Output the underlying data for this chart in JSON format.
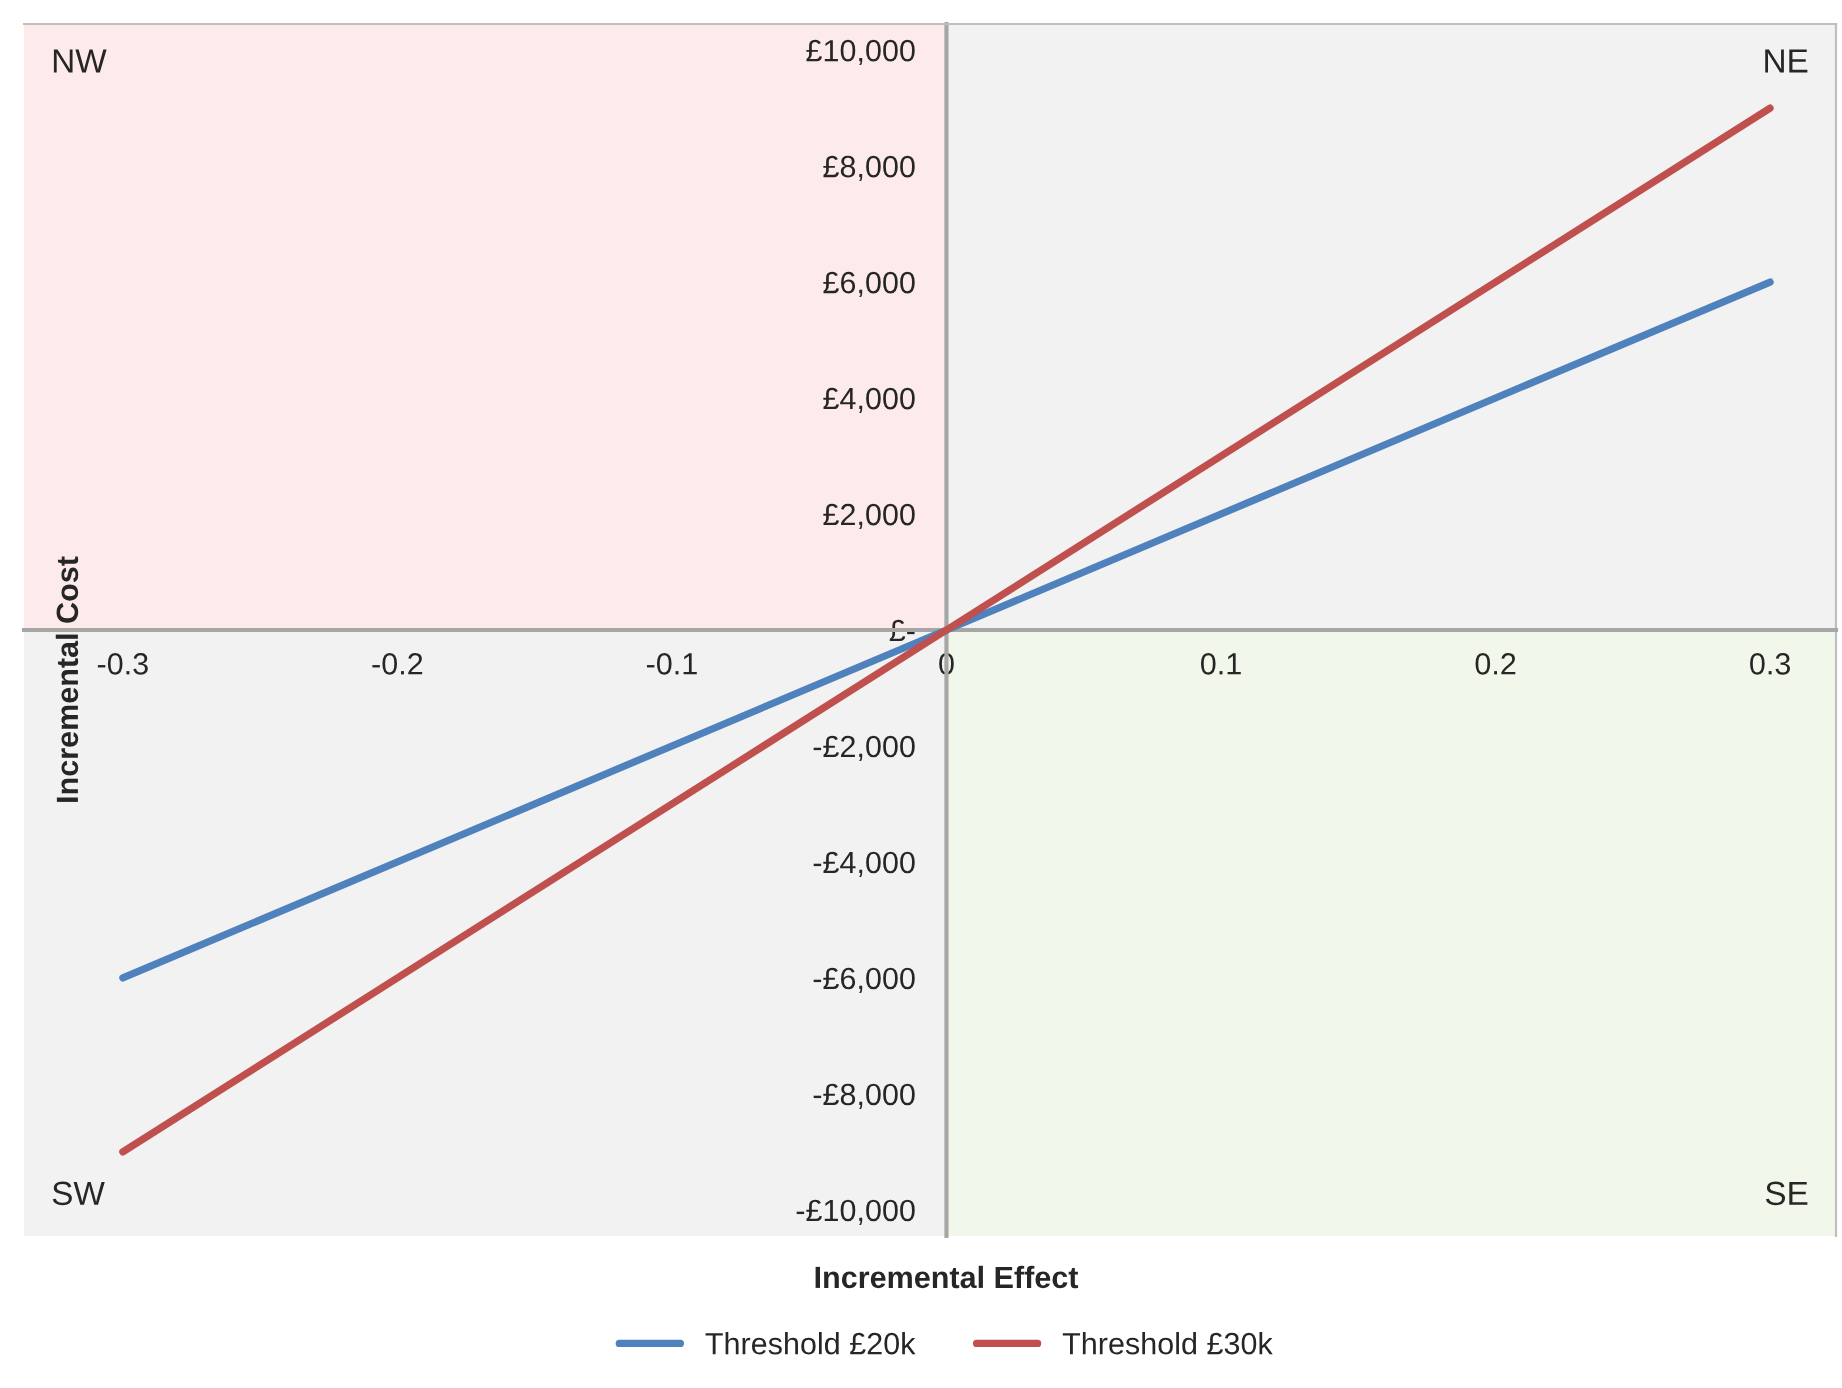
{
  "chart_data": {
    "type": "line",
    "xlabel": "Incremental Effect",
    "ylabel": "Incremental Cost",
    "annotations": [
      "NW",
      "NE",
      "SW",
      "SE"
    ],
    "x": [
      -0.3,
      0,
      0.3
    ],
    "series": [
      {
        "name": "Threshold £20k",
        "color": "#4f81bd",
        "values": [
          -6000,
          0,
          6000
        ]
      },
      {
        "name": "Threshold £30k",
        "color": "#c0504d",
        "values": [
          -9000,
          0,
          9000
        ]
      }
    ],
    "xlim": [
      -0.336,
      0.324
    ],
    "ylim": [
      -10450,
      10450
    ],
    "xticks": [
      -0.3,
      -0.2,
      -0.1,
      0,
      0.1,
      0.2,
      0.3
    ],
    "yticks": [
      {
        "value": -10000,
        "label": "-£10,000"
      },
      {
        "value": -8000,
        "label": "-£8,000"
      },
      {
        "value": -6000,
        "label": "-£6,000"
      },
      {
        "value": -4000,
        "label": "-£4,000"
      },
      {
        "value": -2000,
        "label": "-£2,000"
      },
      {
        "value": 0,
        "label": "£-"
      },
      {
        "value": 2000,
        "label": "£2,000"
      },
      {
        "value": 4000,
        "label": "£4,000"
      },
      {
        "value": 6000,
        "label": "£6,000"
      },
      {
        "value": 8000,
        "label": "£8,000"
      },
      {
        "value": 10000,
        "label": "£10,000"
      }
    ],
    "grid": false,
    "legend": "bottom",
    "marker": "none",
    "line_style": "solid"
  }
}
